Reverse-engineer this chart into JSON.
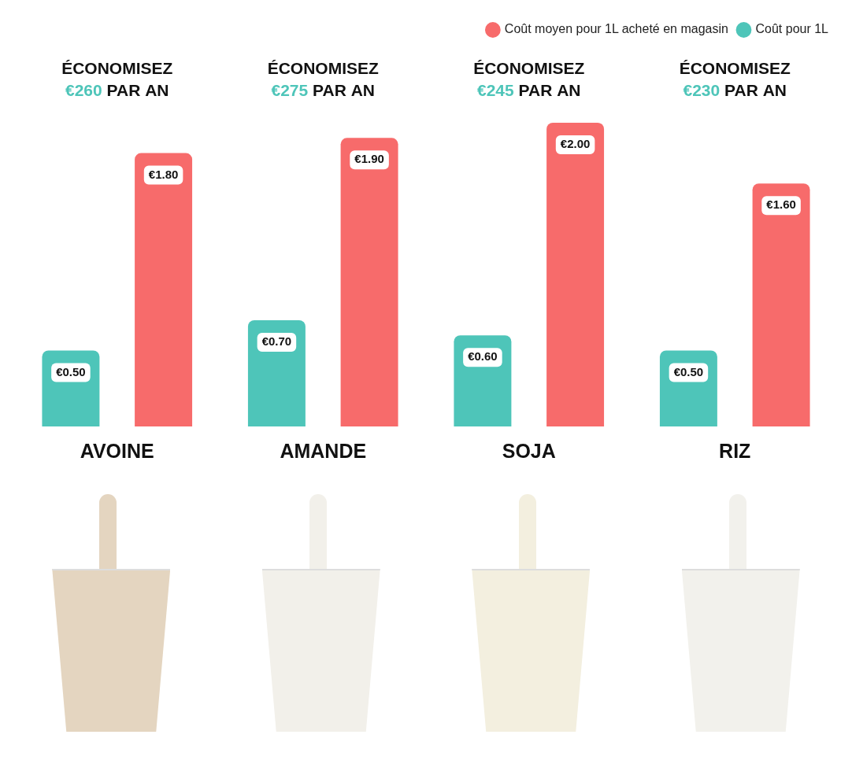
{
  "chart_data": {
    "type": "bar",
    "categories": [
      "AVOINE",
      "AMANDE",
      "SOJA",
      "RIZ"
    ],
    "series": [
      {
        "name": "Coût pour 1L",
        "color": "#4ec5b9",
        "values": [
          0.5,
          0.7,
          0.6,
          0.5
        ],
        "value_labels": [
          "€0.50",
          "€0.70",
          "€0.60",
          "€0.50"
        ]
      },
      {
        "name": "Coût moyen pour 1L acheté en magasin",
        "color": "#f76b6b",
        "values": [
          1.8,
          1.9,
          2.0,
          1.6
        ],
        "value_labels": [
          "€1.80",
          "€1.90",
          "€2.00",
          "€1.60"
        ]
      }
    ],
    "annotations": [
      "ÉCONOMISEZ €260 PAR AN",
      "ÉCONOMISEZ €275 PAR AN",
      "ÉCONOMISEZ €245 PAR AN",
      "ÉCONOMISEZ €230 PAR AN"
    ],
    "legend": "top right",
    "grid": false
  }
}
